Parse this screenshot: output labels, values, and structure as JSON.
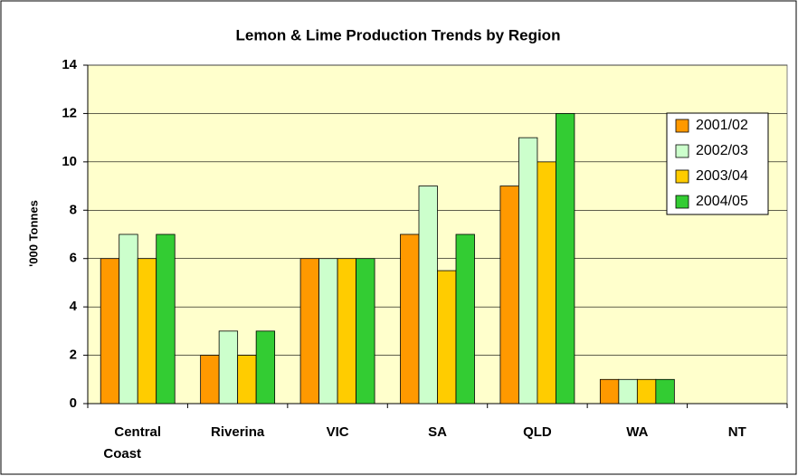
{
  "chart_data": {
    "type": "bar",
    "title": "Lemon & Lime Production Trends by Region",
    "y_label": "'000 Tonnes",
    "categories": [
      "Central Coast",
      "Riverina",
      "VIC",
      "SA",
      "QLD",
      "WA",
      "NT"
    ],
    "series": [
      {
        "name": "2001/02",
        "color": "#ff9900",
        "values": [
          6,
          2,
          6,
          7,
          9,
          1,
          0
        ]
      },
      {
        "name": "2002/03",
        "color": "#ccffcc",
        "values": [
          7,
          3,
          6,
          9,
          11,
          1,
          0
        ]
      },
      {
        "name": "2003/04",
        "color": "#ffcc00",
        "values": [
          6,
          2,
          6,
          5.5,
          10,
          1,
          0
        ]
      },
      {
        "name": "2004/05",
        "color": "#33cc33",
        "values": [
          7,
          3,
          6,
          7,
          12,
          1,
          0
        ]
      }
    ],
    "ylim": [
      0,
      14
    ],
    "yticks": [
      0,
      2,
      4,
      6,
      8,
      10,
      12,
      14
    ],
    "grid": true,
    "legend": "right"
  }
}
